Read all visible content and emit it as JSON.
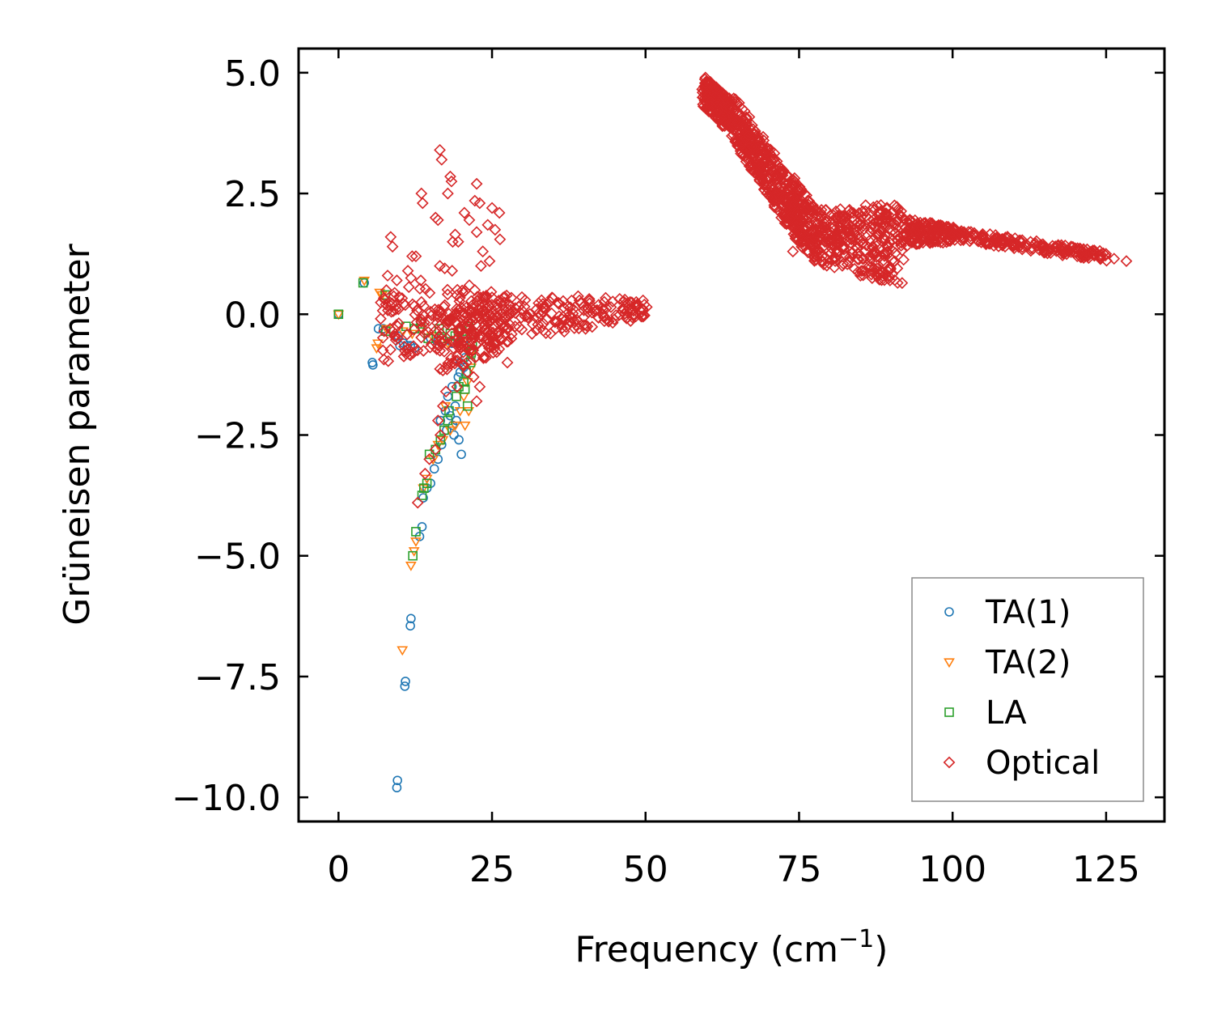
{
  "chart_data": {
    "type": "scatter",
    "title": "",
    "xlabel": "Frequency (cm",
    "xlabel_superscript": "−1",
    "xlabel_suffix": ")",
    "ylabel": "Grüneisen parameter",
    "xlim": [
      -6.5,
      134.5
    ],
    "ylim": [
      -10.5,
      5.5
    ],
    "xticks": [
      0,
      25,
      50,
      75,
      100,
      125
    ],
    "xtick_labels": [
      "0",
      "25",
      "50",
      "75",
      "100",
      "125"
    ],
    "yticks": [
      5.0,
      2.5,
      0.0,
      -2.5,
      -5.0,
      -7.5,
      -10.0
    ],
    "ytick_labels": [
      "5.0",
      "2.5",
      "0.0",
      "−2.5",
      "−5.0",
      "−7.5",
      "−10.0"
    ],
    "grid": false,
    "legend_position": "bottom-right",
    "series": [
      {
        "name": "TA(1)",
        "marker": "circle",
        "color": "#1f77b4",
        "points": [
          [
            0,
            0
          ],
          [
            4.2,
            0.65
          ],
          [
            5.5,
            -1.0
          ],
          [
            5.6,
            -1.05
          ],
          [
            6.5,
            -0.3
          ],
          [
            7.3,
            -0.3
          ],
          [
            9.7,
            -0.45
          ],
          [
            10.0,
            -0.65
          ],
          [
            10.6,
            -0.6
          ],
          [
            11.2,
            -0.65
          ],
          [
            11.7,
            -0.65
          ],
          [
            12.4,
            -0.7
          ],
          [
            15.0,
            -0.5
          ],
          [
            16.0,
            -0.55
          ],
          [
            17.2,
            -0.55
          ],
          [
            18.5,
            -0.6
          ],
          [
            19.4,
            -0.6
          ],
          [
            20.3,
            -0.55
          ],
          [
            19.8,
            -1.0
          ],
          [
            20.4,
            -1.1
          ],
          [
            19.5,
            -1.3
          ],
          [
            18.5,
            -1.5
          ],
          [
            17.8,
            -1.7
          ],
          [
            19.0,
            -1.9
          ],
          [
            18.2,
            -2.1
          ],
          [
            19.2,
            -2.2
          ],
          [
            17.6,
            -2.4
          ],
          [
            18.8,
            -2.5
          ],
          [
            19.6,
            -2.6
          ],
          [
            20.0,
            -2.9
          ],
          [
            16.8,
            -2.7
          ],
          [
            16.2,
            -3.0
          ],
          [
            15.6,
            -3.2
          ],
          [
            15.0,
            -3.5
          ],
          [
            14.4,
            -3.6
          ],
          [
            13.8,
            -3.8
          ],
          [
            13.6,
            -4.4
          ],
          [
            13.2,
            -4.6
          ],
          [
            11.8,
            -6.3
          ],
          [
            11.7,
            -6.45
          ],
          [
            10.9,
            -7.6
          ],
          [
            10.8,
            -7.7
          ],
          [
            9.6,
            -9.65
          ],
          [
            9.5,
            -9.8
          ],
          [
            20.6,
            -0.9
          ],
          [
            19.8,
            -1.2
          ],
          [
            18.6,
            -2.3
          ],
          [
            16.6,
            -2.2
          ],
          [
            17.4,
            -2.0
          ]
        ]
      },
      {
        "name": "TA(2)",
        "marker": "triangle-down",
        "color": "#ff7f0e",
        "points": [
          [
            0,
            0
          ],
          [
            4.2,
            0.7
          ],
          [
            6.2,
            -0.7
          ],
          [
            6.4,
            -0.6
          ],
          [
            6.7,
            0.45
          ],
          [
            7.1,
            0.4
          ],
          [
            7.8,
            -0.3
          ],
          [
            10.5,
            -0.35
          ],
          [
            12.0,
            -0.4
          ],
          [
            13.4,
            -0.3
          ],
          [
            15.2,
            -0.45
          ],
          [
            17.8,
            -0.6
          ],
          [
            19.8,
            -0.6
          ],
          [
            20.8,
            -0.7
          ],
          [
            21.5,
            -0.8
          ],
          [
            21.0,
            -1.4
          ],
          [
            20.4,
            -1.7
          ],
          [
            19.8,
            -2.0
          ],
          [
            19.0,
            -2.3
          ],
          [
            18.2,
            -2.4
          ],
          [
            17.4,
            -1.9
          ],
          [
            17.0,
            -2.6
          ],
          [
            16.2,
            -2.7
          ],
          [
            15.4,
            -3.0
          ],
          [
            14.4,
            -3.4
          ],
          [
            13.8,
            -3.6
          ],
          [
            12.6,
            -4.7
          ],
          [
            12.3,
            -4.9
          ],
          [
            11.8,
            -5.2
          ],
          [
            10.4,
            -6.95
          ],
          [
            21.2,
            -2.0
          ],
          [
            20.6,
            -2.3
          ],
          [
            21.6,
            -1.1
          ]
        ]
      },
      {
        "name": "LA",
        "marker": "square",
        "color": "#2ca02c",
        "points": [
          [
            0,
            0
          ],
          [
            4.0,
            0.65
          ],
          [
            7.6,
            0.4
          ],
          [
            7.7,
            -0.35
          ],
          [
            11.0,
            -0.25
          ],
          [
            12.4,
            -0.3
          ],
          [
            13.4,
            -0.2
          ],
          [
            14.6,
            -0.5
          ],
          [
            16.4,
            -0.3
          ],
          [
            18.2,
            -0.4
          ],
          [
            20.1,
            -0.35
          ],
          [
            21.2,
            -0.25
          ],
          [
            21.7,
            -0.4
          ],
          [
            21.8,
            -0.6
          ],
          [
            21.6,
            -0.8
          ],
          [
            21.5,
            -1.0
          ],
          [
            20.8,
            -1.2
          ],
          [
            20.4,
            -1.4
          ],
          [
            19.6,
            -1.5
          ],
          [
            20.6,
            -1.55
          ],
          [
            19.2,
            -1.7
          ],
          [
            18.0,
            -2.0
          ],
          [
            17.2,
            -2.4
          ],
          [
            16.6,
            -2.6
          ],
          [
            15.8,
            -2.8
          ],
          [
            14.8,
            -2.9
          ],
          [
            14.4,
            -3.5
          ],
          [
            13.9,
            -3.6
          ],
          [
            13.6,
            -3.75
          ],
          [
            12.6,
            -4.5
          ],
          [
            12.1,
            -5.0
          ],
          [
            21.0,
            -1.9
          ],
          [
            17.8,
            -2.2
          ],
          [
            19.0,
            -0.45
          ],
          [
            16.8,
            -0.5
          ]
        ]
      },
      {
        "name": "Optical",
        "marker": "diamond",
        "color": "#d62728",
        "bands": [
          {
            "x0": 7,
            "x1": 50,
            "y0": -0.2,
            "y1": 0.1,
            "w0": 0.8,
            "w1": 0.2,
            "n": 320
          },
          {
            "x0": 16,
            "x1": 28,
            "y0": -0.5,
            "y1": -0.3,
            "w0": 0.7,
            "w1": 0.5,
            "n": 140
          },
          {
            "x0": 59.5,
            "x1": 64,
            "y0": 4.6,
            "y1": 4.1,
            "w0": 0.35,
            "w1": 0.35,
            "n": 220
          },
          {
            "x0": 64,
            "x1": 74,
            "y0": 4.1,
            "y1": 2.2,
            "w0": 0.5,
            "w1": 0.55,
            "n": 360
          },
          {
            "x0": 74,
            "x1": 78,
            "y0": 2.2,
            "y1": 1.6,
            "w0": 0.65,
            "w1": 0.55,
            "n": 160
          },
          {
            "x0": 78,
            "x1": 92,
            "y0": 1.6,
            "y1": 1.45,
            "w0": 0.55,
            "w1": 0.9,
            "n": 300
          },
          {
            "x0": 92,
            "x1": 100,
            "y0": 1.7,
            "y1": 1.65,
            "w0": 0.3,
            "w1": 0.15,
            "n": 140
          },
          {
            "x0": 100,
            "x1": 125,
            "y0": 1.65,
            "y1": 1.2,
            "w0": 0.12,
            "w1": 0.1,
            "n": 200
          }
        ],
        "points": [
          [
            16.5,
            3.4
          ],
          [
            16.8,
            3.2
          ],
          [
            18.2,
            2.85
          ],
          [
            18.4,
            2.75
          ],
          [
            22.5,
            2.7
          ],
          [
            13.5,
            2.5
          ],
          [
            13.7,
            2.3
          ],
          [
            17.8,
            2.5
          ],
          [
            22.2,
            2.35
          ],
          [
            23.0,
            2.3
          ],
          [
            25.0,
            2.2
          ],
          [
            26.2,
            2.1
          ],
          [
            15.8,
            2.0
          ],
          [
            16.2,
            1.95
          ],
          [
            20.5,
            2.1
          ],
          [
            21.3,
            1.95
          ],
          [
            24.3,
            1.85
          ],
          [
            22.5,
            1.7
          ],
          [
            25.5,
            1.75
          ],
          [
            19.0,
            1.65
          ],
          [
            18.6,
            1.5
          ],
          [
            26.3,
            1.55
          ],
          [
            8.5,
            1.6
          ],
          [
            8.8,
            1.4
          ],
          [
            19.5,
            1.5
          ],
          [
            23.5,
            1.3
          ],
          [
            12.0,
            1.2
          ],
          [
            12.6,
            1.2
          ],
          [
            24.6,
            1.1
          ],
          [
            16.5,
            1.0
          ],
          [
            17.3,
            0.95
          ],
          [
            18.5,
            0.9
          ],
          [
            23.2,
            1.0
          ],
          [
            11.3,
            0.9
          ],
          [
            11.8,
            0.75
          ],
          [
            8.0,
            0.8
          ],
          [
            9.5,
            0.7
          ],
          [
            13.4,
            0.7
          ],
          [
            21.3,
            0.6
          ],
          [
            22.2,
            0.5
          ],
          [
            20.3,
            0.45
          ],
          [
            25.0,
            0.35
          ],
          [
            8.4,
            -0.3
          ],
          [
            8.6,
            0.05
          ],
          [
            9.7,
            -0.5
          ],
          [
            14.1,
            -3.3
          ],
          [
            14.8,
            -3.0
          ],
          [
            12.9,
            -3.9
          ],
          [
            15.8,
            -2.8
          ],
          [
            16.2,
            -2.2
          ],
          [
            17.5,
            -1.6
          ],
          [
            18.6,
            -1.0
          ],
          [
            17.0,
            -1.9
          ],
          [
            19.3,
            -1.5
          ],
          [
            22.0,
            -1.3
          ],
          [
            23.0,
            -1.5
          ],
          [
            21.0,
            -1.2
          ],
          [
            22.5,
            -1.8
          ],
          [
            16.6,
            -2.5
          ],
          [
            27.5,
            -1.0
          ],
          [
            24.0,
            -0.9
          ],
          [
            60.0,
            4.75
          ],
          [
            61.0,
            4.7
          ],
          [
            62.5,
            4.55
          ],
          [
            66.8,
            3.7
          ],
          [
            69.5,
            3.0
          ],
          [
            72.0,
            2.4
          ],
          [
            76.0,
            2.15
          ],
          [
            83.0,
            1.85
          ],
          [
            85.0,
            1.95
          ],
          [
            88.0,
            1.95
          ],
          [
            91.0,
            0.95
          ],
          [
            95.0,
            1.8
          ],
          [
            105.0,
            1.55
          ],
          [
            110.0,
            1.45
          ],
          [
            121.0,
            1.3
          ],
          [
            124.0,
            1.2
          ],
          [
            126.3,
            1.15
          ],
          [
            128.3,
            1.1
          ],
          [
            49.8,
            0.2
          ],
          [
            50.2,
            0.15
          ],
          [
            78.0,
            1.2
          ],
          [
            74.0,
            1.3
          ],
          [
            86.5,
            1.1
          ]
        ]
      }
    ]
  }
}
